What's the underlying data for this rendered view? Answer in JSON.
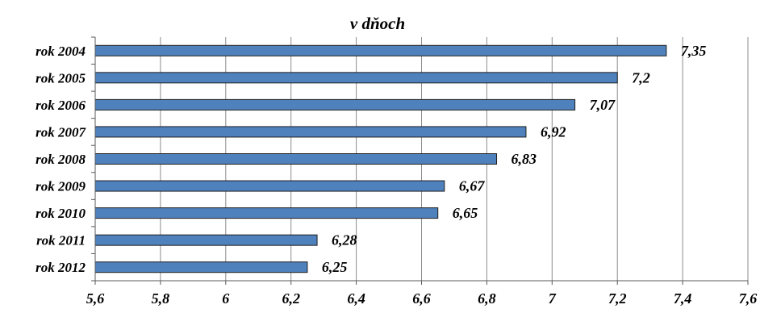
{
  "chart_data": {
    "type": "bar",
    "orientation": "horizontal",
    "title": "v dňoch",
    "categories": [
      "rok 2004",
      "rok 2005",
      "rok 2006",
      "rok 2007",
      "rok 2008",
      "rok 2009",
      "rok 2010",
      "rok 2011",
      "rok 2012"
    ],
    "values": [
      7.35,
      7.2,
      7.07,
      6.92,
      6.83,
      6.67,
      6.65,
      6.28,
      6.25
    ],
    "value_labels": [
      "7,35",
      "7,2",
      "7,07",
      "6,92",
      "6,83",
      "6,67",
      "6,65",
      "6,28",
      "6,25"
    ],
    "xlim": [
      5.6,
      7.6
    ],
    "xticks": [
      5.6,
      5.8,
      6,
      6.2,
      6.4,
      6.6,
      6.8,
      7,
      7.2,
      7.4,
      7.6
    ],
    "xtick_labels": [
      "5,6",
      "5,8",
      "6",
      "6,2",
      "6,4",
      "6,6",
      "6,8",
      "7",
      "7,2",
      "7,4",
      "7,6"
    ],
    "grid": true,
    "legend": "none",
    "bar_color": "#4f81bd",
    "bar_border_color": "#1f1f1f",
    "grid_color": "#8c8c8c"
  }
}
